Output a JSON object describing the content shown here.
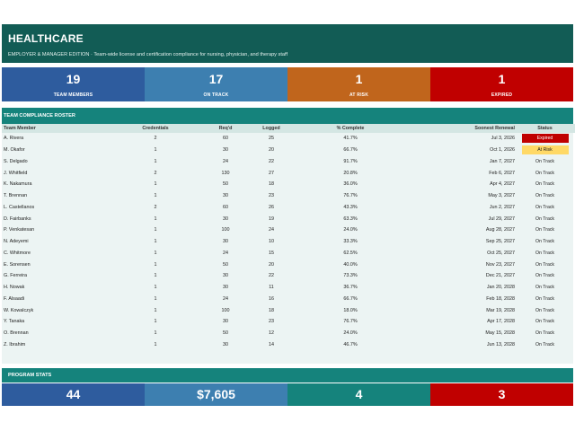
{
  "header": {
    "title": "HEALTHCARE",
    "subtitle": "EMPLOYER & MANAGER EDITION  ·  Team-wide license and certification compliance for nursing, physician, and therapy staff"
  },
  "kpis": [
    {
      "value": "19",
      "label": "TEAM MEMBERS",
      "color": "#2e5c9e"
    },
    {
      "value": "17",
      "label": "ON TRACK",
      "color": "#3d7fb0"
    },
    {
      "value": "1",
      "label": "AT RISK",
      "color": "#c0651c"
    },
    {
      "value": "1",
      "label": "EXPIRED",
      "color": "#c00000"
    }
  ],
  "roster": {
    "title": "TEAM COMPLIANCE ROSTER",
    "columns": [
      "Team Member",
      "Credentials",
      "Req'd",
      "Logged",
      "% Complete",
      "Soonest Renewal",
      "Status"
    ],
    "rows": [
      {
        "name": "A. Rivera",
        "cred": "2",
        "req": "60",
        "logged": "25",
        "pct": "41.7%",
        "renewal": "Jul 3, 2026",
        "status": "Expired"
      },
      {
        "name": "M. Okafor",
        "cred": "1",
        "req": "30",
        "logged": "20",
        "pct": "66.7%",
        "renewal": "Oct 1, 2026",
        "status": "At Risk"
      },
      {
        "name": "S. Delgado",
        "cred": "1",
        "req": "24",
        "logged": "22",
        "pct": "91.7%",
        "renewal": "Jan 7, 2027",
        "status": "On Track"
      },
      {
        "name": "J. Whitfield",
        "cred": "2",
        "req": "130",
        "logged": "27",
        "pct": "20.8%",
        "renewal": "Feb 6, 2027",
        "status": "On Track"
      },
      {
        "name": "K. Nakamura",
        "cred": "1",
        "req": "50",
        "logged": "18",
        "pct": "36.0%",
        "renewal": "Apr 4, 2027",
        "status": "On Track"
      },
      {
        "name": "T. Brennan",
        "cred": "1",
        "req": "30",
        "logged": "23",
        "pct": "76.7%",
        "renewal": "May 3, 2027",
        "status": "On Track"
      },
      {
        "name": "L. Castellanos",
        "cred": "2",
        "req": "60",
        "logged": "26",
        "pct": "43.3%",
        "renewal": "Jun 2, 2027",
        "status": "On Track"
      },
      {
        "name": "D. Fairbanks",
        "cred": "1",
        "req": "30",
        "logged": "19",
        "pct": "63.3%",
        "renewal": "Jul 29, 2027",
        "status": "On Track"
      },
      {
        "name": "P. Venkatesan",
        "cred": "1",
        "req": "100",
        "logged": "24",
        "pct": "24.0%",
        "renewal": "Aug 28, 2027",
        "status": "On Track"
      },
      {
        "name": "N. Adeyemi",
        "cred": "1",
        "req": "30",
        "logged": "10",
        "pct": "33.3%",
        "renewal": "Sep 25, 2027",
        "status": "On Track"
      },
      {
        "name": "C. Whitmore",
        "cred": "1",
        "req": "24",
        "logged": "15",
        "pct": "62.5%",
        "renewal": "Oct 25, 2027",
        "status": "On Track"
      },
      {
        "name": "E. Sorensen",
        "cred": "1",
        "req": "50",
        "logged": "20",
        "pct": "40.0%",
        "renewal": "Nov 23, 2027",
        "status": "On Track"
      },
      {
        "name": "G. Ferreira",
        "cred": "1",
        "req": "30",
        "logged": "22",
        "pct": "73.3%",
        "renewal": "Dec 21, 2027",
        "status": "On Track"
      },
      {
        "name": "H. Nowak",
        "cred": "1",
        "req": "30",
        "logged": "11",
        "pct": "36.7%",
        "renewal": "Jan 20, 2028",
        "status": "On Track"
      },
      {
        "name": "F. Alsaadi",
        "cred": "1",
        "req": "24",
        "logged": "16",
        "pct": "66.7%",
        "renewal": "Feb 18, 2028",
        "status": "On Track"
      },
      {
        "name": "W. Kowalczyk",
        "cred": "1",
        "req": "100",
        "logged": "18",
        "pct": "18.0%",
        "renewal": "Mar 19, 2028",
        "status": "On Track"
      },
      {
        "name": "Y. Tanaka",
        "cred": "1",
        "req": "30",
        "logged": "23",
        "pct": "76.7%",
        "renewal": "Apr 17, 2028",
        "status": "On Track"
      },
      {
        "name": "O. Brennan",
        "cred": "1",
        "req": "50",
        "logged": "12",
        "pct": "24.0%",
        "renewal": "May 15, 2028",
        "status": "On Track"
      },
      {
        "name": "Z. Ibrahim",
        "cred": "1",
        "req": "30",
        "logged": "14",
        "pct": "46.7%",
        "renewal": "Jun 13, 2028",
        "status": "On Track"
      }
    ]
  },
  "stats": {
    "title": "PROGRAM STATS",
    "items": [
      {
        "value": "44",
        "color": "#2e5c9e"
      },
      {
        "value": "$7,605",
        "color": "#3d7fb0"
      },
      {
        "value": "4",
        "color": "#15837c"
      },
      {
        "value": "3",
        "color": "#c00000"
      }
    ]
  }
}
